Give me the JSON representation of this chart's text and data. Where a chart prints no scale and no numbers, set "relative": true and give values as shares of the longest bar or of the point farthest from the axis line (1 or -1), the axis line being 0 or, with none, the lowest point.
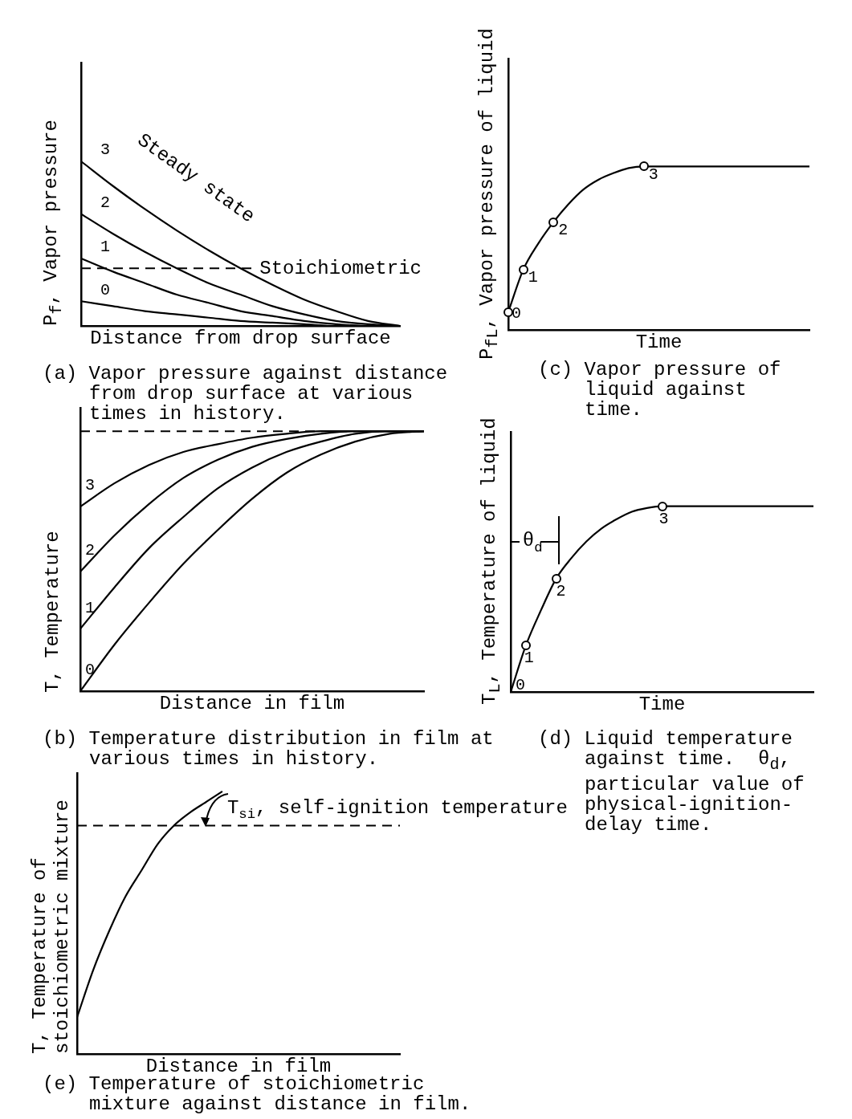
{
  "chart_data": [
    {
      "type": "line",
      "relative": true,
      "marker": "none",
      "title": "(a) Vapor pressure against distance from drop surface at various times in history.",
      "xlabel": "Distance from drop surface",
      "ylabel": "P$_{f}$, Vapor pressure",
      "annotations": [
        "Steady state"
      ],
      "categories": [
        null,
        null,
        null,
        null,
        null,
        null,
        null,
        null,
        null,
        null,
        null
      ],
      "series": [
        {
          "name": "3",
          "color": "#000000",
          "values": [
            1.0,
            0.85,
            0.71,
            0.58,
            0.46,
            0.35,
            0.25,
            0.16,
            0.09,
            0.03,
            0
          ]
        },
        {
          "name": "2",
          "color": "#000000",
          "values": [
            0.68,
            0.56,
            0.45,
            0.35,
            0.26,
            0.19,
            0.12,
            0.07,
            0.03,
            0.01,
            0
          ]
        },
        {
          "name": "1",
          "color": "#000000",
          "values": [
            0.41,
            0.33,
            0.26,
            0.19,
            0.14,
            0.09,
            0.06,
            0.03,
            0.01,
            0,
            0
          ]
        },
        {
          "name": "0",
          "color": "#000000",
          "values": [
            0.15,
            0.12,
            0.09,
            0.07,
            0.05,
            0.03,
            0.02,
            0.01,
            0,
            0,
            0
          ]
        }
      ],
      "ref_lines": [
        {
          "axis": "y",
          "value": 0.35,
          "label": "Stoichiometric",
          "color": "#000000",
          "line_style": "dashed"
        }
      ]
    },
    {
      "type": "line",
      "relative": true,
      "marker": "none",
      "title": "(b) Temperature distribution in film at various times in history.",
      "xlabel": "Distance in film",
      "ylabel": "T, Temperature",
      "categories": [
        null,
        null,
        null,
        null,
        null,
        null,
        null,
        null,
        null,
        null,
        null
      ],
      "series": [
        {
          "name": "3",
          "color": "#000000",
          "values": [
            0.71,
            0.8,
            0.87,
            0.92,
            0.95,
            0.975,
            0.99,
            1,
            1,
            1,
            1
          ]
        },
        {
          "name": "2",
          "color": "#000000",
          "values": [
            0.46,
            0.6,
            0.72,
            0.82,
            0.89,
            0.94,
            0.97,
            0.99,
            1,
            1,
            1
          ]
        },
        {
          "name": "1",
          "color": "#000000",
          "values": [
            0.24,
            0.4,
            0.55,
            0.67,
            0.78,
            0.86,
            0.92,
            0.96,
            0.99,
            1,
            1
          ]
        },
        {
          "name": "0",
          "color": "#000000",
          "values": [
            0,
            0.18,
            0.34,
            0.49,
            0.62,
            0.74,
            0.84,
            0.91,
            0.96,
            0.99,
            1
          ]
        }
      ],
      "ref_lines": [
        {
          "axis": "y",
          "value": 1,
          "color": "#000000",
          "line_style": "dashed"
        }
      ]
    },
    {
      "type": "line",
      "relative": true,
      "marker": "none",
      "title": "(c) Vapor pressure of liquid against time.",
      "xlabel": "Time",
      "ylabel": "P$_{fL}$, Vapor pressure of liquid",
      "annotations": [
        "0",
        "1",
        "2",
        "3"
      ],
      "categories": [
        null,
        null,
        null,
        null,
        null,
        null,
        null,
        null,
        null,
        null,
        null,
        null,
        null,
        null,
        null,
        null,
        null,
        null,
        null,
        null,
        null
      ],
      "series": [
        {
          "color": "#000000",
          "values": [
            0.11,
            0.37,
            0.53,
            0.66,
            0.77,
            0.86,
            0.92,
            0.96,
            0.99,
            1,
            1,
            1,
            1,
            1,
            1,
            1,
            1,
            1,
            1,
            1,
            1
          ]
        }
      ]
    },
    {
      "type": "line",
      "relative": true,
      "marker": "none",
      "title": "(d) Liquid temperature against time.  θ$_{d}$, particular value of physical-ignition-delay time.",
      "xlabel": "Time",
      "ylabel": "T$_{L}$, Temperature of liquid",
      "annotations": [
        "θ$_{d}$",
        "0",
        "1",
        "2",
        "3"
      ],
      "categories": [
        null,
        null,
        null,
        null,
        null,
        null,
        null,
        null,
        null,
        null,
        null,
        null,
        null,
        null,
        null,
        null,
        null,
        null,
        null,
        null,
        null
      ],
      "series": [
        {
          "color": "#000000",
          "values": [
            0,
            0.25,
            0.44,
            0.61,
            0.72,
            0.81,
            0.88,
            0.93,
            0.97,
            0.99,
            1,
            1,
            1,
            1,
            1,
            1,
            1,
            1,
            1,
            1,
            1
          ]
        }
      ]
    },
    {
      "type": "line",
      "relative": true,
      "marker": "none",
      "title": "(e) Temperature of stoichiometric mixture against distance in film.",
      "xlabel": "Distance in film",
      "ylabel": "T, Temperature of stoichiometric mixture",
      "categories": [
        null,
        null,
        null,
        null,
        null,
        null,
        null,
        null,
        null,
        null,
        null,
        null,
        null,
        null,
        null,
        null,
        null,
        null,
        null,
        null,
        null
      ],
      "series": [
        {
          "color": "#000000",
          "values": [
            0.14,
            0.32,
            0.47,
            0.6,
            0.7,
            0.8,
            0.87,
            0.92,
            0.96,
            1,
            null,
            null,
            null,
            null,
            null,
            null,
            null,
            null,
            null,
            null,
            null
          ]
        }
      ],
      "ref_lines": [
        {
          "axis": "y",
          "value": 0.87,
          "label": "T$_{si}$, self-ignition temperature",
          "color": "#000000",
          "line_style": "dashed"
        }
      ]
    }
  ]
}
